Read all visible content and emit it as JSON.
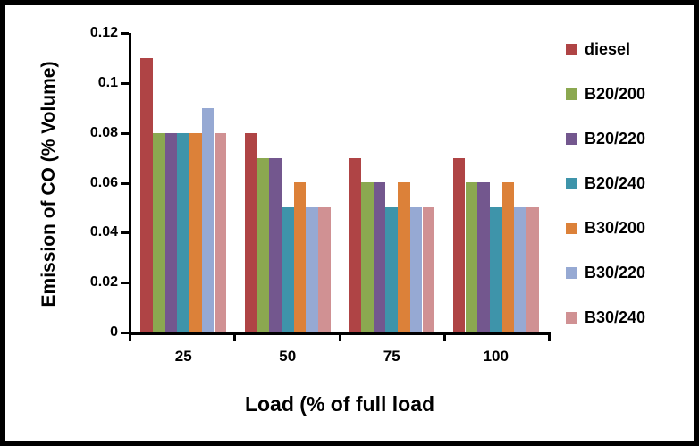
{
  "chart_data": {
    "type": "bar",
    "title": "",
    "xlabel": "Load (% of full load",
    "ylabel": "Emission of CO (% Volume)",
    "categories": [
      "25",
      "50",
      "75",
      "100"
    ],
    "series": [
      {
        "name": "diesel",
        "color": "#AF4445",
        "values": [
          0.11,
          0.08,
          0.07,
          0.07
        ]
      },
      {
        "name": "B20/200",
        "color": "#8BA850",
        "values": [
          0.08,
          0.07,
          0.06,
          0.06
        ]
      },
      {
        "name": "B20/220",
        "color": "#73578E",
        "values": [
          0.08,
          0.07,
          0.06,
          0.06
        ]
      },
      {
        "name": "B20/240",
        "color": "#3E94AA",
        "values": [
          0.08,
          0.05,
          0.05,
          0.05
        ]
      },
      {
        "name": "B30/200",
        "color": "#DC8139",
        "values": [
          0.08,
          0.06,
          0.06,
          0.06
        ]
      },
      {
        "name": "B30/220",
        "color": "#96A9D3",
        "values": [
          0.09,
          0.05,
          0.05,
          0.05
        ]
      },
      {
        "name": "B30/240",
        "color": "#D09193",
        "values": [
          0.08,
          0.05,
          0.05,
          0.05
        ]
      }
    ],
    "ylim": [
      0,
      0.12
    ],
    "ytick_step": 0.02,
    "ytick_labels": [
      "0.12",
      "0.1",
      "0.08",
      "0.06",
      "0.04",
      "0.02",
      "0"
    ],
    "legend_position": "right",
    "grid": false,
    "axis_color": "#000000"
  }
}
